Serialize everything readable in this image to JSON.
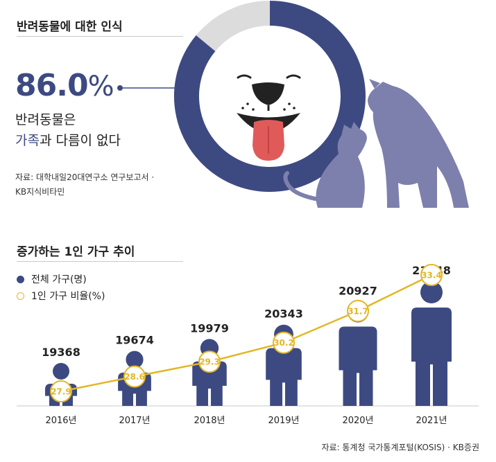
{
  "section1": {
    "title": "반려동물에 대한 인식",
    "percent_value": "86.0",
    "percent_unit": "%",
    "percent_fraction": 0.86,
    "desc_line1": "반려동물은",
    "desc_accent": "가족",
    "desc_rest": "과 다름이 없다",
    "source_line1": "자료: 대학내일20대연구소 연구보고서 ·",
    "source_line2": "KB지식비타민"
  },
  "section2": {
    "title": "증가하는 1인 가구 추이",
    "legend_households": "전체 가구(명)",
    "legend_single": "1인 가구 비율(%)",
    "source": "자료: 통계청 국가통계포털(KOSIS) · KB증권"
  },
  "colors": {
    "navy": "#3d4a82",
    "light_gray": "#dcdcdc",
    "gold": "#e3b625",
    "pet_purple": "#7d80ad",
    "tongue": "#e05a5a"
  },
  "chart_data": {
    "type": "bar",
    "categories": [
      "2016년",
      "2017년",
      "2018년",
      "2019년",
      "2020년",
      "2021년"
    ],
    "series": [
      {
        "name": "전체 가구(명)",
        "values": [
          19368,
          19674,
          19979,
          20343,
          20927,
          21448
        ]
      },
      {
        "name": "1인 가구 비율(%)",
        "values": [
          27.9,
          28.6,
          29.3,
          30.2,
          31.7,
          33.4
        ]
      }
    ],
    "total_labels": [
      "19368",
      "19674",
      "19979",
      "20343",
      "20927",
      "21448"
    ],
    "ratio_labels": [
      "27.9",
      "28.6",
      "29.3",
      "30.2",
      "31.7",
      "33.4"
    ],
    "title": "증가하는 1인 가구 추이",
    "legend": "top-left"
  }
}
